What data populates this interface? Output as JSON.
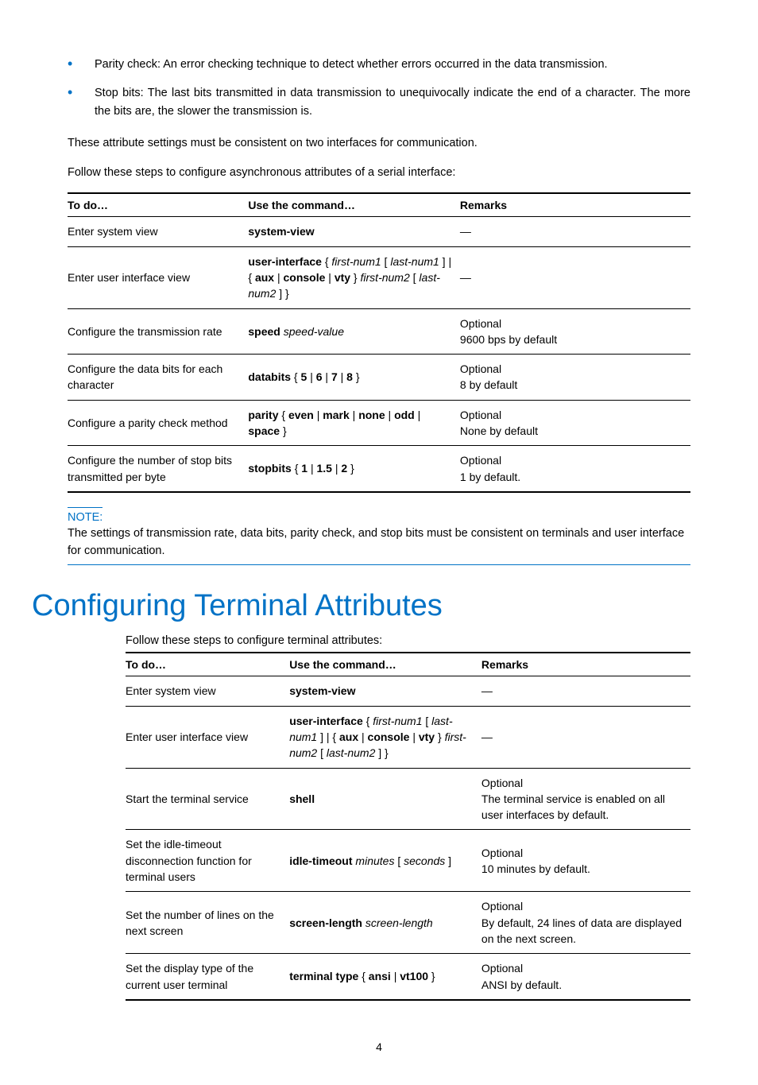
{
  "bullets": [
    "Parity check: An error checking technique to detect whether errors occurred in the data transmission.",
    "Stop bits: The last bits transmitted in data transmission to unequivocally indicate the end of a character. The more the bits are, the slower the transmission is."
  ],
  "para_consistent": "These attribute settings must be consistent on two interfaces for communication.",
  "para_follow1": "Follow these steps to configure asynchronous attributes of a serial interface:",
  "table1": {
    "headers": [
      "To do…",
      "Use the command…",
      "Remarks"
    ],
    "rows": [
      {
        "todo": "Enter system view",
        "cmd_html": "<span class='cmd-bold'>system-view</span>",
        "rem": "—"
      },
      {
        "todo": "Enter user interface view",
        "cmd_html": "<span class='cmd-bold'>user-interface</span> { <span class='cmd-italic'>first-num1</span> [ <span class='cmd-italic'>last-num1</span> ] | { <span class='cmd-bold'>aux</span> | <span class='cmd-bold'>console</span> | <span class='cmd-bold'>vty</span> } <span class='cmd-italic'>first-num2</span> [ <span class='cmd-italic'>last-num2</span> ] }",
        "rem": "—"
      },
      {
        "todo": "Configure the transmission rate",
        "cmd_html": "<span class='cmd-bold'>speed</span> <span class='cmd-italic'>speed-value</span>",
        "rem": "Optional<br>9600 bps by default"
      },
      {
        "todo": "Configure the data bits for each character",
        "cmd_html": "<span class='cmd-bold'>databits</span> { <span class='cmd-bold'>5</span> | <span class='cmd-bold'>6</span> | <span class='cmd-bold'>7</span> | <span class='cmd-bold'>8</span> }",
        "rem": "Optional<br>8 by default"
      },
      {
        "todo": "Configure a parity check method",
        "cmd_html": "<span class='cmd-bold'>parity</span> { <span class='cmd-bold'>even</span> | <span class='cmd-bold'>mark</span> | <span class='cmd-bold'>none</span> | <span class='cmd-bold'>odd</span> | <span class='cmd-bold'>space</span> }",
        "rem": "Optional<br>None by default"
      },
      {
        "todo": "Configure the number of stop bits transmitted per byte",
        "cmd_html": "<span class='cmd-bold'>stopbits</span> { <span class='cmd-bold'>1</span> | <span class='cmd-bold'>1.5</span> | <span class='cmd-bold'>2</span> }",
        "rem": "Optional<br>1 by default."
      }
    ]
  },
  "note_title": "NOTE:",
  "note_body": "The settings of transmission rate, data bits, parity check, and stop bits must be consistent on terminals and user interface for communication.",
  "h1": "Configuring Terminal Attributes",
  "para_follow2": "Follow these steps to configure terminal attributes:",
  "table2": {
    "headers": [
      "To do…",
      "Use the command…",
      "Remarks"
    ],
    "rows": [
      {
        "todo": "Enter system view",
        "cmd_html": "<span class='cmd-bold'>system-view</span>",
        "rem": "—"
      },
      {
        "todo": "Enter user interface view",
        "cmd_html": "<span class='cmd-bold'>user-interface</span> { <span class='cmd-italic'>first-num1</span> [ <span class='cmd-italic'>last-num1</span> ] | { <span class='cmd-bold'>aux</span> | <span class='cmd-bold'>console</span> | <span class='cmd-bold'>vty</span> } <span class='cmd-italic'>first-num2</span> [ <span class='cmd-italic'>last-num2</span> ] }",
        "rem": "—"
      },
      {
        "todo": "Start the terminal service",
        "cmd_html": "<span class='cmd-bold'>shell</span>",
        "rem": "Optional<br>The terminal service is enabled on all user interfaces by default."
      },
      {
        "todo": "Set the idle-timeout disconnection function for terminal users",
        "cmd_html": "<span class='cmd-bold'>idle-timeout</span> <span class='cmd-italic'>minutes</span> [ <span class='cmd-italic'>seconds</span> ]",
        "rem": "Optional<br>10 minutes by default."
      },
      {
        "todo": "Set the number of lines on the next screen",
        "cmd_html": "<span class='cmd-bold'>screen-length</span> <span class='cmd-italic'>screen-length</span>",
        "rem": "Optional<br>By default, 24 lines of data are displayed on the next screen."
      },
      {
        "todo": "Set the display type of the current user terminal",
        "cmd_html": "<span class='cmd-bold'>terminal type</span> { <span class='cmd-bold'>ansi</span> | <span class='cmd-bold'>vt100</span> }",
        "rem": "Optional<br>ANSI by default."
      }
    ]
  },
  "page_number": "4"
}
